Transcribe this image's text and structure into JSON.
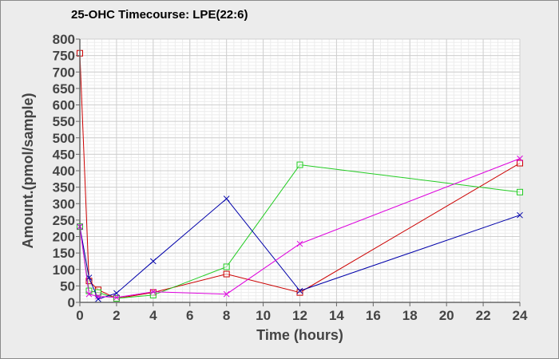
{
  "chart_data": {
    "type": "line",
    "title": "25-OHC Timecourse: LPE(22:6)",
    "xlabel": "Time (hours)",
    "ylabel": "Amount.(pmol/sample)",
    "xlim": [
      0,
      24
    ],
    "ylim": [
      0,
      800
    ],
    "xticks": [
      0,
      2,
      4,
      6,
      8,
      10,
      12,
      14,
      16,
      18,
      20,
      22,
      24
    ],
    "yticks": [
      0,
      50,
      100,
      150,
      200,
      250,
      300,
      350,
      400,
      450,
      500,
      550,
      600,
      650,
      700,
      750,
      800
    ],
    "grid": true,
    "legend": "none",
    "series": [
      {
        "color": "#cc0000",
        "marker": "square",
        "points": [
          [
            0,
            757
          ],
          [
            0.5,
            65
          ],
          [
            1,
            38
          ],
          [
            2,
            12
          ],
          [
            4,
            30
          ],
          [
            8,
            86
          ],
          [
            12,
            30
          ],
          [
            24,
            423
          ]
        ]
      },
      {
        "color": "#22cc22",
        "marker": "square",
        "points": [
          [
            0,
            230
          ],
          [
            0.5,
            35
          ],
          [
            1,
            30
          ],
          [
            2,
            12
          ],
          [
            4,
            22
          ],
          [
            8,
            108
          ],
          [
            12,
            418
          ],
          [
            24,
            335
          ]
        ]
      },
      {
        "color": "#0000aa",
        "marker": "x",
        "points": [
          [
            0,
            230
          ],
          [
            0.5,
            75
          ],
          [
            1,
            10
          ],
          [
            2,
            28
          ],
          [
            4,
            125
          ],
          [
            8,
            315
          ],
          [
            12,
            35
          ],
          [
            24,
            265
          ]
        ]
      },
      {
        "color": "#dd00dd",
        "marker": "x",
        "points": [
          [
            0,
            230
          ],
          [
            0.5,
            25
          ],
          [
            1,
            18
          ],
          [
            2,
            15
          ],
          [
            4,
            32
          ],
          [
            8,
            25
          ],
          [
            12,
            178
          ],
          [
            24,
            437
          ]
        ]
      }
    ]
  }
}
